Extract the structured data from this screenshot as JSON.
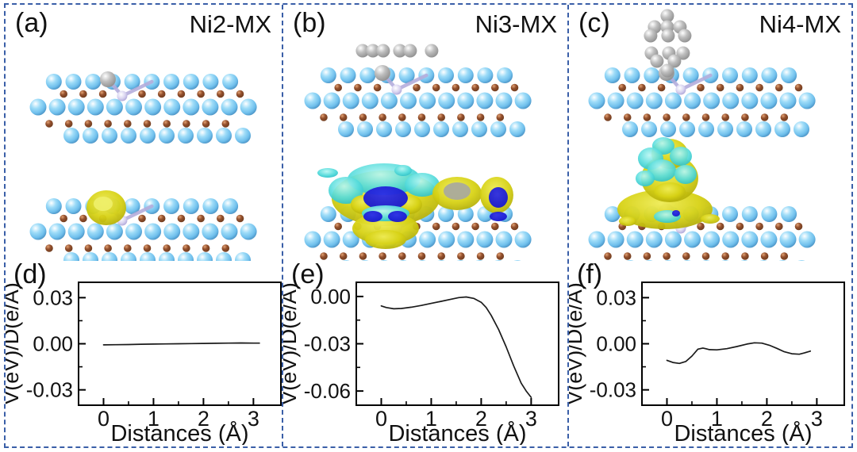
{
  "figure": {
    "border_color": "#3a5fa8",
    "background": "#ffffff",
    "panels": [
      {
        "id": "a",
        "label": "(a)",
        "title": "Ni2-MX",
        "chart_label": "(d)",
        "structure": {
          "adsorbate_cluster": "none",
          "dopant": "embedded-gray-and-lavender-pair",
          "isosurface": "small-yellow-blob"
        }
      },
      {
        "id": "b",
        "label": "(b)",
        "title": "Ni3-MX",
        "chart_label": "(e)",
        "structure": {
          "adsorbate_cluster": "linear-row-6",
          "dopant": "embedded-gray-and-lavender-pair",
          "isosurface": "wide-multilobe"
        }
      },
      {
        "id": "c",
        "label": "(c)",
        "title": "Ni4-MX",
        "chart_label": "(f)",
        "structure": {
          "adsorbate_cluster": "pyramid-13",
          "dopant": "embedded-gray-and-lavender-pair",
          "isosurface": "tall-pyramid"
        }
      }
    ]
  },
  "colors": {
    "atom_blue": "#6fbfec",
    "atom_brown": "#94502d",
    "atom_gray": "#bfbfbf",
    "atom_lavender": "#d8d3f0",
    "bond": "#b4addc",
    "iso_yellow": "#d7d215",
    "iso_cyan": "#57dcdc",
    "iso_deep_blue": "#1414cc",
    "plot_line": "#1a1a1a"
  },
  "chart_data": [
    {
      "panel": "d",
      "type": "line",
      "title": "",
      "xlabel": "Distances (Å)",
      "ylabel": "V(eV)/D(e/Å)",
      "xlim": [
        -0.5,
        3.55
      ],
      "ylim": [
        -0.04,
        0.04
      ],
      "xticks": [
        {
          "v": 0,
          "label": "0"
        },
        {
          "v": 1,
          "label": "1"
        },
        {
          "v": 2,
          "label": "2"
        },
        {
          "v": 3,
          "label": "3"
        }
      ],
      "yticks": [
        {
          "v": 0.03,
          "label": "0.03"
        },
        {
          "v": 0,
          "label": "0.00"
        },
        {
          "v": -0.03,
          "label": "-0.03"
        }
      ],
      "xminor": [
        0.5,
        1.5,
        2.5
      ],
      "yminor": [
        0.015,
        -0.015
      ],
      "x": [
        0,
        0.25,
        0.5,
        0.75,
        1.0,
        1.25,
        1.5,
        1.75,
        2.0,
        2.25,
        2.5,
        2.75,
        3.0,
        3.12
      ],
      "y": [
        -0.0007,
        -0.0006,
        -0.0005,
        -0.0003,
        -0.0002,
        -0.0001,
        0.0,
        0.0001,
        0.0002,
        0.0003,
        0.0004,
        0.0005,
        0.0004,
        0.0004
      ]
    },
    {
      "panel": "e",
      "type": "line",
      "title": "",
      "xlabel": "Distances (Å)",
      "ylabel": "V(eV)/D(e/Å)",
      "xlim": [
        -0.5,
        3.55
      ],
      "ylim": [
        -0.069,
        0.009
      ],
      "xticks": [
        {
          "v": 0,
          "label": "0"
        },
        {
          "v": 1,
          "label": "1"
        },
        {
          "v": 2,
          "label": "2"
        },
        {
          "v": 3,
          "label": "3"
        }
      ],
      "yticks": [
        {
          "v": 0,
          "label": "0.00"
        },
        {
          "v": -0.03,
          "label": "-0.03"
        },
        {
          "v": -0.06,
          "label": "-0.06"
        }
      ],
      "xminor": [
        0.5,
        1.5,
        2.5
      ],
      "yminor": [
        -0.015,
        -0.045
      ],
      "x": [
        0,
        0.1,
        0.25,
        0.4,
        0.6,
        0.8,
        1.0,
        1.2,
        1.4,
        1.55,
        1.7,
        1.85,
        2.0,
        2.1,
        2.2,
        2.35,
        2.5,
        2.65,
        2.8,
        2.9,
        3.0
      ],
      "y": [
        -0.006,
        -0.007,
        -0.0078,
        -0.0076,
        -0.0068,
        -0.0057,
        -0.0044,
        -0.0031,
        -0.0017,
        -0.0007,
        -0.0003,
        -0.0012,
        -0.0037,
        -0.007,
        -0.012,
        -0.021,
        -0.032,
        -0.044,
        -0.055,
        -0.06,
        -0.064
      ]
    },
    {
      "panel": "f",
      "type": "line",
      "title": "",
      "xlabel": "Distances (Å)",
      "ylabel": "V(eV)/D(e/Å)",
      "xlim": [
        -0.5,
        3.55
      ],
      "ylim": [
        -0.04,
        0.04
      ],
      "xticks": [
        {
          "v": 0,
          "label": "0"
        },
        {
          "v": 1,
          "label": "1"
        },
        {
          "v": 2,
          "label": "2"
        },
        {
          "v": 3,
          "label": "3"
        }
      ],
      "yticks": [
        {
          "v": 0.03,
          "label": "0.03"
        },
        {
          "v": 0,
          "label": "0.00"
        },
        {
          "v": -0.03,
          "label": "-0.03"
        }
      ],
      "xminor": [
        0.5,
        1.5,
        2.5
      ],
      "yminor": [
        0.015,
        -0.015
      ],
      "x": [
        0,
        0.12,
        0.25,
        0.38,
        0.5,
        0.62,
        0.72,
        0.85,
        1.0,
        1.2,
        1.4,
        1.6,
        1.75,
        1.9,
        2.05,
        2.2,
        2.35,
        2.5,
        2.65,
        2.75,
        2.87
      ],
      "y": [
        -0.0108,
        -0.0122,
        -0.0128,
        -0.0115,
        -0.008,
        -0.0035,
        -0.0028,
        -0.0038,
        -0.004,
        -0.0032,
        -0.0018,
        -0.0002,
        0.0006,
        0.0004,
        -0.001,
        -0.003,
        -0.0052,
        -0.0065,
        -0.0068,
        -0.006,
        -0.0048
      ]
    }
  ]
}
